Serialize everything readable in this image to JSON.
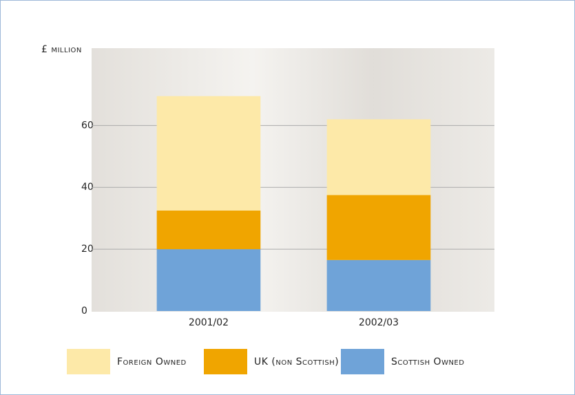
{
  "chart_data": {
    "type": "stacked_bar",
    "y_label": "£ million",
    "categories": [
      "2001/02",
      "2002/03"
    ],
    "series": [
      {
        "name": "Scottish Owned",
        "color": "#6fa3d8",
        "values": [
          20,
          16.5
        ]
      },
      {
        "name": "UK (non Scottish) Owned",
        "color": "#f0a500",
        "values": [
          12.5,
          21
        ]
      },
      {
        "name": "Foreign Owned",
        "color": "#fde9a8",
        "values": [
          37,
          24.5
        ]
      }
    ],
    "ylim": [
      0,
      85
    ],
    "yticks": [
      0,
      20,
      40,
      60
    ],
    "grid": true
  }
}
